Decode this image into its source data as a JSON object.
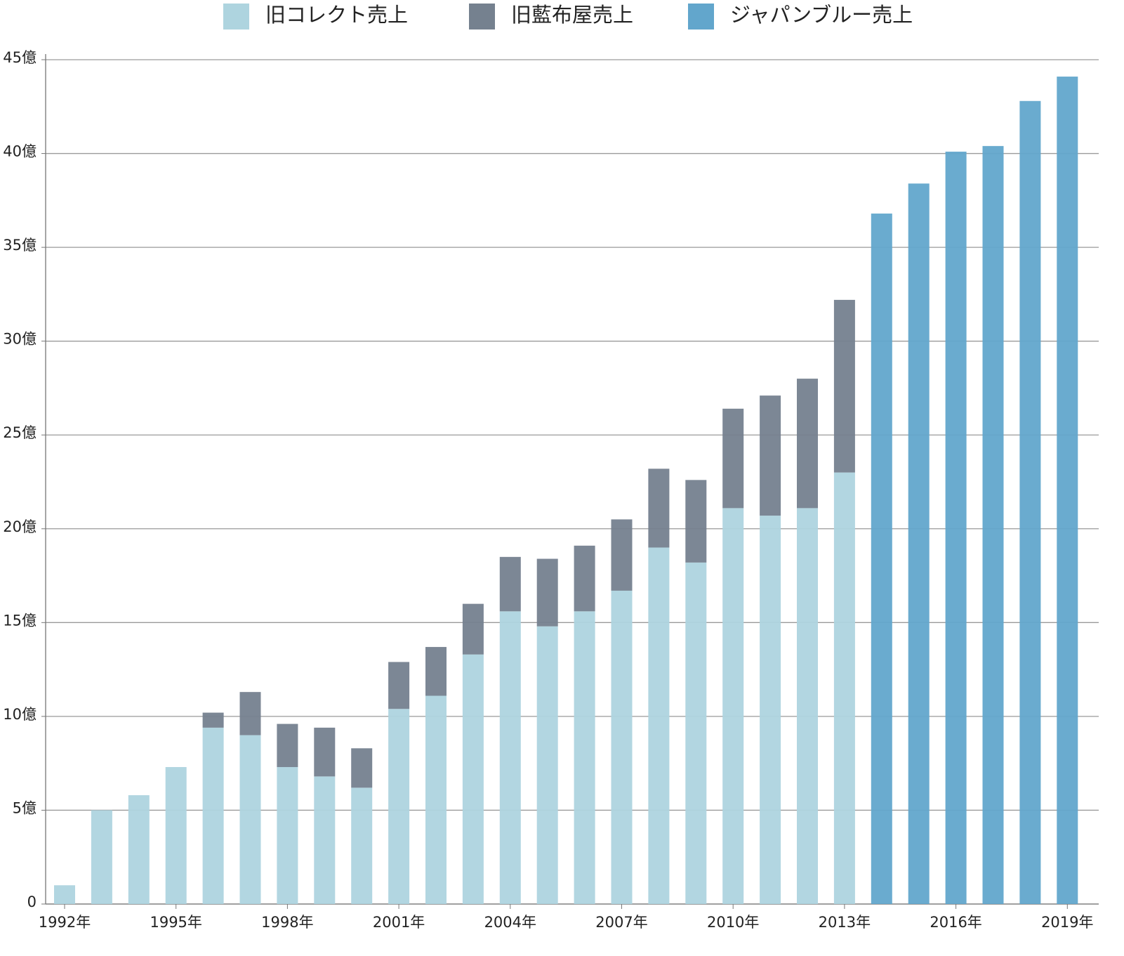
{
  "chart_data": {
    "type": "stacked-bar",
    "categories": [
      "1992年",
      null,
      null,
      "1995年",
      null,
      null,
      "1998年",
      null,
      null,
      "2001年",
      null,
      null,
      "2004年",
      null,
      null,
      "2007年",
      null,
      null,
      "2010年",
      null,
      null,
      "2013年",
      null,
      null,
      "2016年",
      null,
      null,
      "2019年"
    ],
    "series": [
      {
        "name": "旧コレクト売上",
        "color": "#aed4df",
        "values": [
          1.0,
          5.0,
          5.8,
          7.3,
          9.4,
          9.0,
          7.3,
          6.8,
          6.2,
          10.4,
          11.1,
          13.3,
          15.6,
          14.8,
          15.6,
          16.7,
          19.0,
          18.2,
          21.1,
          20.7,
          21.1,
          23.0,
          null,
          null,
          null,
          null,
          null,
          null
        ]
      },
      {
        "name": "旧藍布屋売上",
        "color": "#75818f",
        "values": [
          null,
          null,
          null,
          null,
          0.8,
          2.3,
          2.3,
          2.6,
          2.1,
          2.5,
          2.6,
          2.7,
          2.9,
          3.6,
          3.5,
          3.8,
          4.2,
          4.4,
          5.3,
          6.4,
          6.9,
          9.2,
          null,
          null,
          null,
          null,
          null,
          null
        ]
      },
      {
        "name": "ジャパンブルー売上",
        "color": "#62a6cc",
        "values": [
          null,
          null,
          null,
          null,
          null,
          null,
          null,
          null,
          null,
          null,
          null,
          null,
          null,
          null,
          null,
          null,
          null,
          null,
          null,
          null,
          null,
          null,
          36.8,
          38.4,
          40.1,
          40.4,
          42.8,
          44.1
        ]
      }
    ],
    "ylim": [
      0,
      45
    ],
    "yticks": [
      0,
      {
        "value": 5,
        "label": "5億"
      },
      {
        "value": 10,
        "label": "10億"
      },
      {
        "value": 15,
        "label": "15億"
      },
      {
        "value": 20,
        "label": "20億"
      },
      {
        "value": 25,
        "label": "25億"
      },
      {
        "value": 30,
        "label": "30億"
      },
      {
        "value": 35,
        "label": "35億"
      },
      {
        "value": 40,
        "label": "40億"
      },
      {
        "value": 45,
        "label": "45億"
      }
    ],
    "grid": true
  }
}
